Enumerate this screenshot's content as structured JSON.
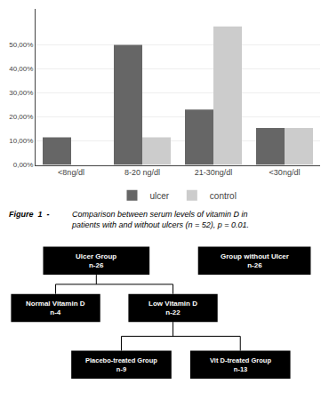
{
  "chart_data": {
    "type": "bar",
    "categories": [
      "<8ng/dl",
      "8-20 ng/dl",
      "21-30ng/dl",
      "<30ng/dl"
    ],
    "series": [
      {
        "name": "ulcer",
        "color": "#666666",
        "values": [
          11.54,
          50.0,
          23.08,
          15.38
        ]
      },
      {
        "name": "control",
        "color": "#cccccc",
        "values": [
          0.0,
          11.54,
          57.69,
          15.38
        ]
      }
    ],
    "ylim": [
      0,
      65
    ],
    "yticks": [
      {
        "value": 0,
        "label": "0,00%"
      },
      {
        "value": 10,
        "label": "10,00%"
      },
      {
        "value": 20,
        "label": "20,00%"
      },
      {
        "value": 30,
        "label": "30,00%"
      },
      {
        "value": 40,
        "label": "40,00%"
      },
      {
        "value": 50,
        "label": "50,00%"
      }
    ],
    "grid": true,
    "legend": "bottom",
    "annotations": [
      "Figure  1  -",
      "Comparison between serum levels of vitamin D in\npatients with and without ulcers (n = 52), p = 0.01.",
      "Ulcer Group\nn-26",
      "Group without Ulcer\nn-26",
      "Normal Vitamin D\nn-4",
      "Low Vitamin D\nn-22",
      "Placebo-treated Group\nn-9",
      "Vit D-treated Group\nn-13"
    ]
  }
}
